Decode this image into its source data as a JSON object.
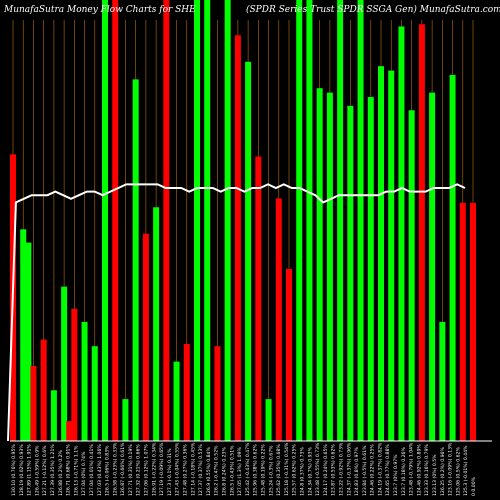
{
  "header": {
    "left": "MunafaSutra  Money Flow  Charts for SHE",
    "right": "(SPDR Series Trust SPDR SSGA Gen) MunafaSutra.com"
  },
  "chart_data": {
    "type": "bar",
    "title": "MunafaSutra  Money Flow  Charts for SHE",
    "subtitle": "(SPDR Series Trust SPDR SSGA Gen) MunafaSutra.com",
    "ylim": [
      0,
      100
    ],
    "grid": true,
    "colors": {
      "up": "#00ff00",
      "down": "#ff0000",
      "line": "#ffffff",
      "grid": "#b8700a",
      "background": "#000000"
    },
    "categories": [
      "130.10 (0.76%) 0.95%",
      "128.19 (0.02%) 0.93%",
      "127.89 (1.15%) 1.91%",
      "126.49 (-0.59%) 0.9%",
      "127.21 (-0.12%) 0.6%",
      "127.39 (0.35%) 1.21%",
      "126.88 (0.2%) 0.2%",
      "126.71 (0.68%) 0.91%",
      "126.13 (-0.71%) 1.1%",
      "127.04 (0%) 0.74%",
      "127.04 (0.01%) 0.41%",
      "127.03 (0.43%) 1.06%",
      "126.5 (-0.06%) 0.83%",
      "126.58 (-0.23%) 0.33%",
      "126.87 (-0.66%) 0.61%",
      "127.71 (0.31%) 0.19%",
      "127.32 (0.21%) 0.66%",
      "127.06 (0.12%) 1.07%",
      "126.91 (-0.22%) 0.34%",
      "127.19 (-0.09%) 0.65%",
      "127.3 (-0.1%) 0.31%",
      "127.43 (-0.04%) 0.55%",
      "127.48 (0.27%) 0.36%",
      "127.14 (-0.18%) 0.45%",
      "127.37 (0.37%) 0.53%",
      "126.9 (0.55%) 0.84%",
      "126.2 (-0.47%) 0.52%",
      "126.8 (0.24%) 0.23%",
      "126.5 (-0.43%) 0.51%",
      "127.05 (1.3%) 1.09%",
      "125.42 (-0.43%) 0.47%",
      "125.96 (0.38%) 0.62%",
      "125.48 (0.19%) 0.22%",
      "125.24 (-0.3%) 0.67%",
      "125.62 (0.35%) 0.68%",
      "125.18 (-0.31%) 0.54%",
      "125.57 (0.62%) 0.25%",
      "124.8 (0.37%) 0.73%",
      "124.34 (0.7%) 0.93%",
      "123.48 (-0.55%) 0.73%",
      "124.17 (0.24%) 0.65%",
      "123.87 (0.53%) 0.62%",
      "123.22 (-0.92%) 0.73%",
      "124.37 (-0.37%) 0.96%",
      "124.83 (0.8%) 0.97%",
      "123.84 (-0.5%) 0.61%",
      "124.46 (0.22%) 0.25%",
      "124.19 (-0.37%) 0.82%",
      "124.65 (0.77%) 0.88%",
      "123.7 (0%) 0.97%",
      "123.7 (0.18%) 0.26%",
      "123.48 (-0.79%) 1.04%",
      "124.46 (0.92%) 0.89%",
      "123.33 (0.16%) 0.79%",
      "123.13 (0%) 0.5%",
      "126.25 (0.2%) 0.96%",
      "123.16 (-0.09%) 0.13%",
      "125.06 (0.5%) 0.62%",
      "125.3 (-0.01%) 0.44%",
      "0 0.00%"
    ],
    "bars": [
      {
        "value": 65,
        "dir": "down"
      },
      {
        "value": 0,
        "dir": "down"
      },
      {
        "value": 48,
        "dir": "up"
      },
      {
        "value": 45,
        "dir": "up"
      },
      {
        "value": 17,
        "dir": "down"
      },
      {
        "value": 0,
        "dir": "up"
      },
      {
        "value": 23,
        "dir": "down"
      },
      {
        "value": 0,
        "dir": "down"
      },
      {
        "value": 11.5,
        "dir": "up"
      },
      {
        "value": 0,
        "dir": "up"
      },
      {
        "value": 35,
        "dir": "up"
      },
      {
        "value": 4.5,
        "dir": "down"
      },
      {
        "value": 30,
        "dir": "down"
      },
      {
        "value": 0,
        "dir": "down"
      },
      {
        "value": 27,
        "dir": "up"
      },
      {
        "value": 0,
        "dir": "up"
      },
      {
        "value": 21.5,
        "dir": "up"
      },
      {
        "value": 0,
        "dir": "up"
      },
      {
        "value": 100,
        "dir": "up"
      },
      {
        "value": 0,
        "dir": "up"
      },
      {
        "value": 100,
        "dir": "down"
      },
      {
        "value": 0,
        "dir": "down"
      },
      {
        "value": 9.5,
        "dir": "up"
      },
      {
        "value": 0,
        "dir": "up"
      },
      {
        "value": 82,
        "dir": "up"
      },
      {
        "value": 0,
        "dir": "up"
      },
      {
        "value": 47,
        "dir": "down"
      },
      {
        "value": 0,
        "dir": "down"
      },
      {
        "value": 53,
        "dir": "up"
      },
      {
        "value": 0,
        "dir": "up"
      },
      {
        "value": 100,
        "dir": "down"
      },
      {
        "value": 0,
        "dir": "down"
      },
      {
        "value": 18,
        "dir": "up"
      },
      {
        "value": 0,
        "dir": "up"
      },
      {
        "value": 22,
        "dir": "down"
      },
      {
        "value": 0,
        "dir": "down"
      },
      {
        "value": 100,
        "dir": "up"
      },
      {
        "value": 0,
        "dir": "up"
      },
      {
        "value": 100,
        "dir": "up"
      },
      {
        "value": 0,
        "dir": "up"
      },
      {
        "value": 21.5,
        "dir": "down"
      },
      {
        "value": 0,
        "dir": "down"
      },
      {
        "value": 100,
        "dir": "up"
      },
      {
        "value": 0,
        "dir": "up"
      },
      {
        "value": 92,
        "dir": "down"
      },
      {
        "value": 0,
        "dir": "down"
      },
      {
        "value": 86,
        "dir": "up"
      },
      {
        "value": 0,
        "dir": "up"
      },
      {
        "value": 64.5,
        "dir": "down"
      },
      {
        "value": 0,
        "dir": "down"
      },
      {
        "value": 9.5,
        "dir": "up"
      },
      {
        "value": 0,
        "dir": "up"
      },
      {
        "value": 55,
        "dir": "down"
      },
      {
        "value": 0,
        "dir": "down"
      },
      {
        "value": 39,
        "dir": "down"
      },
      {
        "value": 0,
        "dir": "down"
      },
      {
        "value": 100,
        "dir": "up"
      },
      {
        "value": 0,
        "dir": "up"
      },
      {
        "value": 100,
        "dir": "up"
      },
      {
        "value": 0,
        "dir": "up"
      },
      {
        "value": 80,
        "dir": "up"
      },
      {
        "value": 0,
        "dir": "up"
      },
      {
        "value": 79,
        "dir": "up"
      },
      {
        "value": 0,
        "dir": "up"
      },
      {
        "value": 100,
        "dir": "up"
      },
      {
        "value": 0,
        "dir": "up"
      },
      {
        "value": 76,
        "dir": "up"
      },
      {
        "value": 0,
        "dir": "up"
      },
      {
        "value": 100,
        "dir": "up"
      },
      {
        "value": 0,
        "dir": "up"
      },
      {
        "value": 78,
        "dir": "up"
      },
      {
        "value": 0,
        "dir": "up"
      },
      {
        "value": 85,
        "dir": "up"
      },
      {
        "value": 0,
        "dir": "up"
      },
      {
        "value": 84,
        "dir": "up"
      },
      {
        "value": 0,
        "dir": "up"
      },
      {
        "value": 94,
        "dir": "up"
      },
      {
        "value": 0,
        "dir": "up"
      },
      {
        "value": 75,
        "dir": "up"
      },
      {
        "value": 0,
        "dir": "up"
      },
      {
        "value": 94.5,
        "dir": "down"
      },
      {
        "value": 0,
        "dir": "down"
      },
      {
        "value": 79,
        "dir": "up"
      },
      {
        "value": 0,
        "dir": "up"
      },
      {
        "value": 27,
        "dir": "up"
      },
      {
        "value": 0,
        "dir": "up"
      },
      {
        "value": 83,
        "dir": "up"
      },
      {
        "value": 0,
        "dir": "up"
      },
      {
        "value": 54,
        "dir": "down"
      },
      {
        "value": 0,
        "dir": "down"
      },
      {
        "value": 54,
        "dir": "down"
      }
    ],
    "bar_values": [
      65,
      48,
      45,
      17,
      23,
      11.5,
      35,
      4.5,
      30,
      27,
      21.5,
      100,
      9.5,
      82,
      47,
      53,
      100,
      18,
      22,
      100,
      100,
      21.5,
      100,
      92,
      86,
      64.5,
      9.5,
      55,
      39,
      100,
      100,
      80,
      79,
      100,
      76,
      100,
      78,
      85,
      84,
      94,
      75,
      94.5,
      79,
      27,
      83,
      54,
      54
    ],
    "bar_dirs": [
      "down",
      "up",
      "up",
      "down",
      "down",
      "up",
      "up",
      "down",
      "down",
      "up",
      "up",
      "up",
      "up",
      "up",
      "down",
      "up",
      "down",
      "up",
      "down",
      "up",
      "up",
      "down",
      "up",
      "down",
      "up",
      "down",
      "up",
      "down",
      "down",
      "up",
      "up",
      "up",
      "up",
      "up",
      "up",
      "up",
      "up",
      "up",
      "up",
      "up",
      "up",
      "down",
      "up",
      "up",
      "up",
      "down",
      "down"
    ],
    "line_values": [
      0,
      66,
      67,
      68,
      68,
      68,
      69,
      68,
      67,
      68,
      69,
      69,
      68,
      69,
      70,
      71,
      71,
      71,
      71,
      71,
      70,
      70,
      70,
      69,
      70,
      70,
      70,
      69,
      70,
      70,
      69,
      70,
      70,
      71,
      70,
      71,
      70,
      70,
      69,
      68,
      66,
      67,
      68,
      68,
      68,
      68,
      68,
      68,
      69,
      69,
      70,
      69,
      69,
      69,
      70,
      70,
      70,
      71,
      70
    ]
  }
}
